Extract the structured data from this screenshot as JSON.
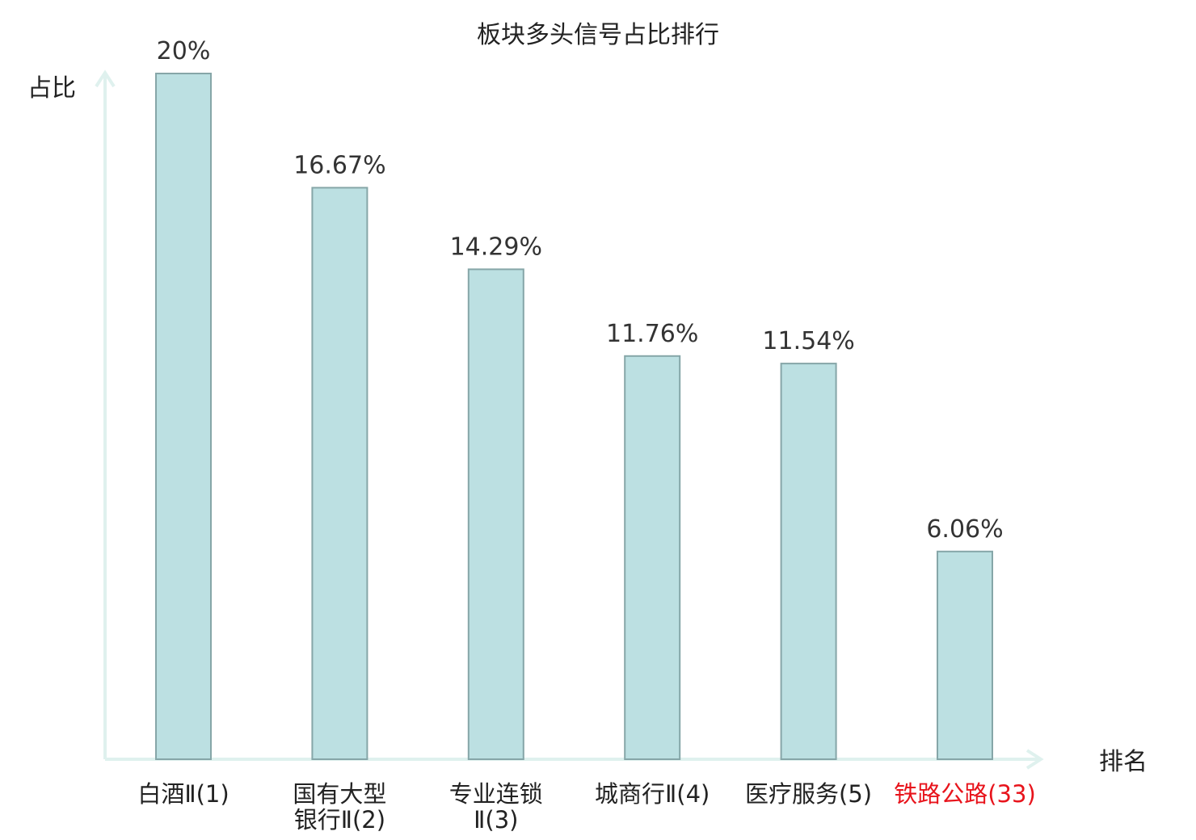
{
  "chart_data": {
    "type": "bar",
    "title": "板块多头信号占比排行",
    "ylabel": "占比",
    "xlabel": "排名",
    "ylim": [
      0,
      20
    ],
    "categories": [
      {
        "lines": [
          "白酒Ⅱ(1)"
        ],
        "highlight": false
      },
      {
        "lines": [
          "国有大型",
          "银行Ⅱ(2)"
        ],
        "highlight": false
      },
      {
        "lines": [
          "专业连锁",
          "Ⅱ(3)"
        ],
        "highlight": false
      },
      {
        "lines": [
          "城商行Ⅱ(4)"
        ],
        "highlight": false
      },
      {
        "lines": [
          "医疗服务(5)"
        ],
        "highlight": false
      },
      {
        "lines": [
          "铁路公路(33)"
        ],
        "highlight": true
      }
    ],
    "values": [
      20,
      16.67,
      14.29,
      11.76,
      11.54,
      6.06
    ],
    "value_labels": [
      "20%",
      "16.67%",
      "14.29%",
      "11.76%",
      "11.54%",
      "6.06%"
    ],
    "grid": false,
    "legend": "none",
    "colors": {
      "bar_fill": "#bce0e2",
      "bar_stroke": "#86a6a8",
      "axis": "#dff1ee",
      "highlight_text": "#e8141c",
      "text": "#222222"
    }
  }
}
